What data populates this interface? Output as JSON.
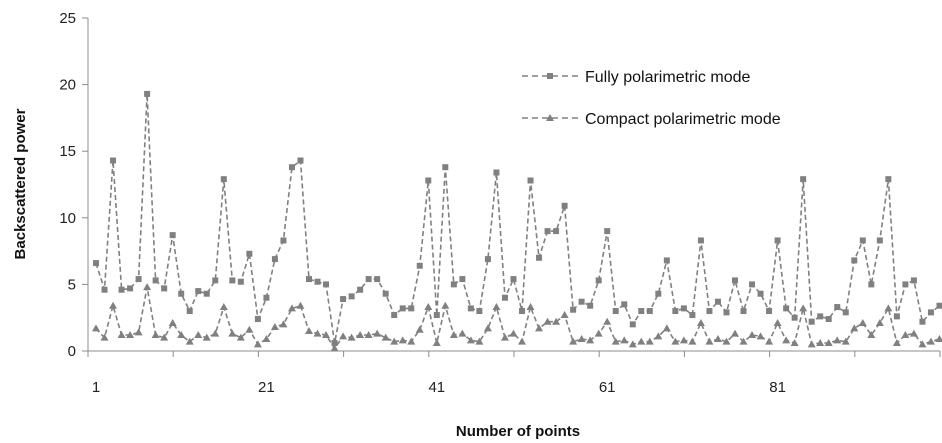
{
  "chart_data": {
    "type": "line",
    "title": "",
    "xlabel": "Number of  points",
    "ylabel": "Backscattered power",
    "ylim": [
      0,
      25
    ],
    "yticks": [
      0,
      5,
      10,
      15,
      20,
      25
    ],
    "xticks": [
      1,
      21,
      41,
      61,
      81
    ],
    "x": [
      1,
      2,
      3,
      4,
      5,
      6,
      7,
      8,
      9,
      10,
      11,
      12,
      13,
      14,
      15,
      16,
      17,
      18,
      19,
      20,
      21,
      22,
      23,
      24,
      25,
      26,
      27,
      28,
      29,
      30,
      31,
      32,
      33,
      34,
      35,
      36,
      37,
      38,
      39,
      40,
      41,
      42,
      43,
      44,
      45,
      46,
      47,
      48,
      49,
      50,
      51,
      52,
      53,
      54,
      55,
      56,
      57,
      58,
      59,
      60,
      61,
      62,
      63,
      64,
      65,
      66,
      67,
      68,
      69,
      70,
      71,
      72,
      73,
      74,
      75,
      76,
      77,
      78,
      79,
      80,
      81,
      82,
      83,
      84,
      85,
      86,
      87,
      88,
      89,
      90,
      91,
      92,
      93,
      94,
      95,
      96,
      97,
      98,
      99,
      100
    ],
    "grid": false,
    "legend_position": "top-right",
    "series": [
      {
        "name": "Fully polarimetric mode",
        "marker": "square",
        "color": "#808080",
        "values": [
          6.6,
          4.6,
          14.3,
          4.6,
          4.7,
          5.4,
          19.3,
          5.3,
          4.7,
          8.7,
          4.3,
          3.0,
          4.5,
          4.3,
          5.3,
          12.9,
          5.3,
          5.2,
          7.3,
          2.4,
          4.0,
          6.9,
          8.3,
          13.8,
          14.3,
          5.4,
          5.2,
          5.0,
          0.6,
          3.9,
          4.1,
          4.6,
          5.4,
          5.4,
          4.3,
          2.7,
          3.2,
          3.2,
          6.4,
          12.8,
          2.7,
          13.8,
          5.0,
          5.4,
          3.2,
          3.0,
          6.9,
          13.4,
          4.0,
          5.4,
          3.0,
          12.8,
          7.0,
          9.0,
          9.0,
          10.9,
          3.1,
          3.7,
          3.4,
          5.3,
          9.0,
          3.0,
          3.5,
          2.0,
          3.0,
          3.0,
          4.3,
          6.8,
          3.0,
          3.2,
          2.7,
          8.3,
          3.0,
          3.7,
          2.9,
          5.3,
          3.0,
          5.0,
          4.3,
          3.0,
          8.3,
          3.2,
          2.5,
          12.9,
          2.2,
          2.6,
          2.4,
          3.3,
          2.9,
          6.8,
          8.3,
          5.0,
          8.3,
          12.9,
          2.6,
          5.0,
          5.3,
          2.2,
          2.9,
          3.4
        ]
      },
      {
        "name": "Compact polarimetric mode",
        "marker": "triangle",
        "color": "#808080",
        "values": [
          1.7,
          1.0,
          3.4,
          1.2,
          1.2,
          1.4,
          4.8,
          1.2,
          1.0,
          2.1,
          1.2,
          0.7,
          1.2,
          1.0,
          1.3,
          3.3,
          1.3,
          1.0,
          1.6,
          0.5,
          0.9,
          1.8,
          2.0,
          3.2,
          3.4,
          1.5,
          1.3,
          1.2,
          0.2,
          1.1,
          1.0,
          1.2,
          1.2,
          1.3,
          1.0,
          0.7,
          0.8,
          0.7,
          1.6,
          3.3,
          0.6,
          3.4,
          1.2,
          1.3,
          0.8,
          0.7,
          1.7,
          3.3,
          1.0,
          1.3,
          0.7,
          3.3,
          1.7,
          2.2,
          2.2,
          2.7,
          0.7,
          0.9,
          0.8,
          1.3,
          2.2,
          0.7,
          0.8,
          0.5,
          0.7,
          0.7,
          1.1,
          1.7,
          0.7,
          0.8,
          0.7,
          2.1,
          0.7,
          0.9,
          0.7,
          1.3,
          0.7,
          1.2,
          1.1,
          0.7,
          2.1,
          0.8,
          0.6,
          3.2,
          0.5,
          0.6,
          0.6,
          0.8,
          0.7,
          1.7,
          2.1,
          1.2,
          2.1,
          3.2,
          0.6,
          1.2,
          1.3,
          0.5,
          0.7,
          0.9
        ]
      }
    ]
  }
}
